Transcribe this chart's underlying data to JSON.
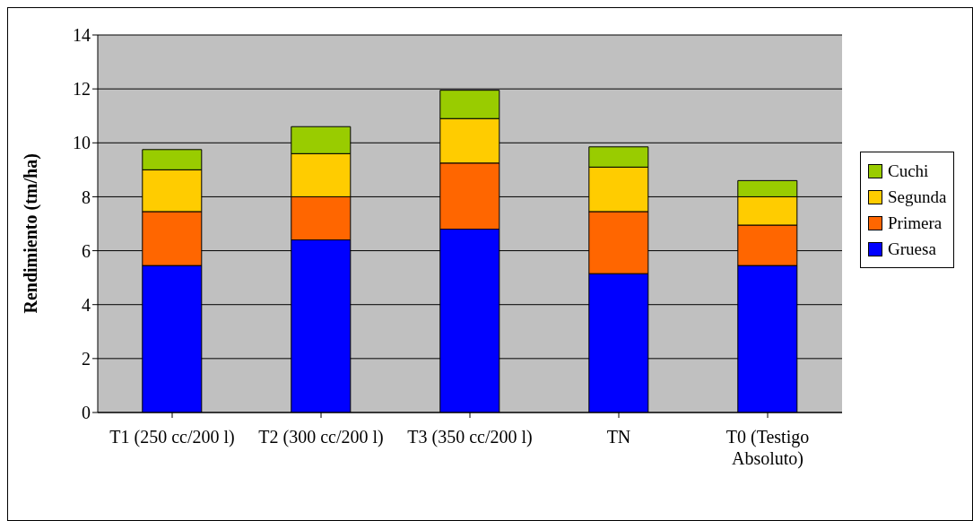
{
  "chart_data": {
    "type": "bar",
    "stacked": true,
    "ylabel": "Rendimiento (tm/ha)",
    "categories": [
      "T1 (250 cc/200 l)",
      "T2 (300 cc/200 l)",
      "T3 (350 cc/200 l)",
      "TN",
      "T0 (Testigo Absoluto)"
    ],
    "series": [
      {
        "name": "Gruesa",
        "color": "#0000ff",
        "values": [
          5.45,
          6.4,
          6.8,
          5.15,
          5.45
        ]
      },
      {
        "name": "Primera",
        "color": "#ff6600",
        "values": [
          2.0,
          1.6,
          2.45,
          2.3,
          1.5
        ]
      },
      {
        "name": "Segunda",
        "color": "#ffcc00",
        "values": [
          1.55,
          1.6,
          1.65,
          1.65,
          1.05
        ]
      },
      {
        "name": "Cuchi",
        "color": "#99cc00",
        "values": [
          0.75,
          1.0,
          1.05,
          0.75,
          0.6
        ]
      }
    ],
    "ylim": [
      0,
      14
    ],
    "yticks": [
      0,
      2,
      4,
      6,
      8,
      10,
      12,
      14
    ],
    "grid": "y",
    "legend": "right"
  }
}
